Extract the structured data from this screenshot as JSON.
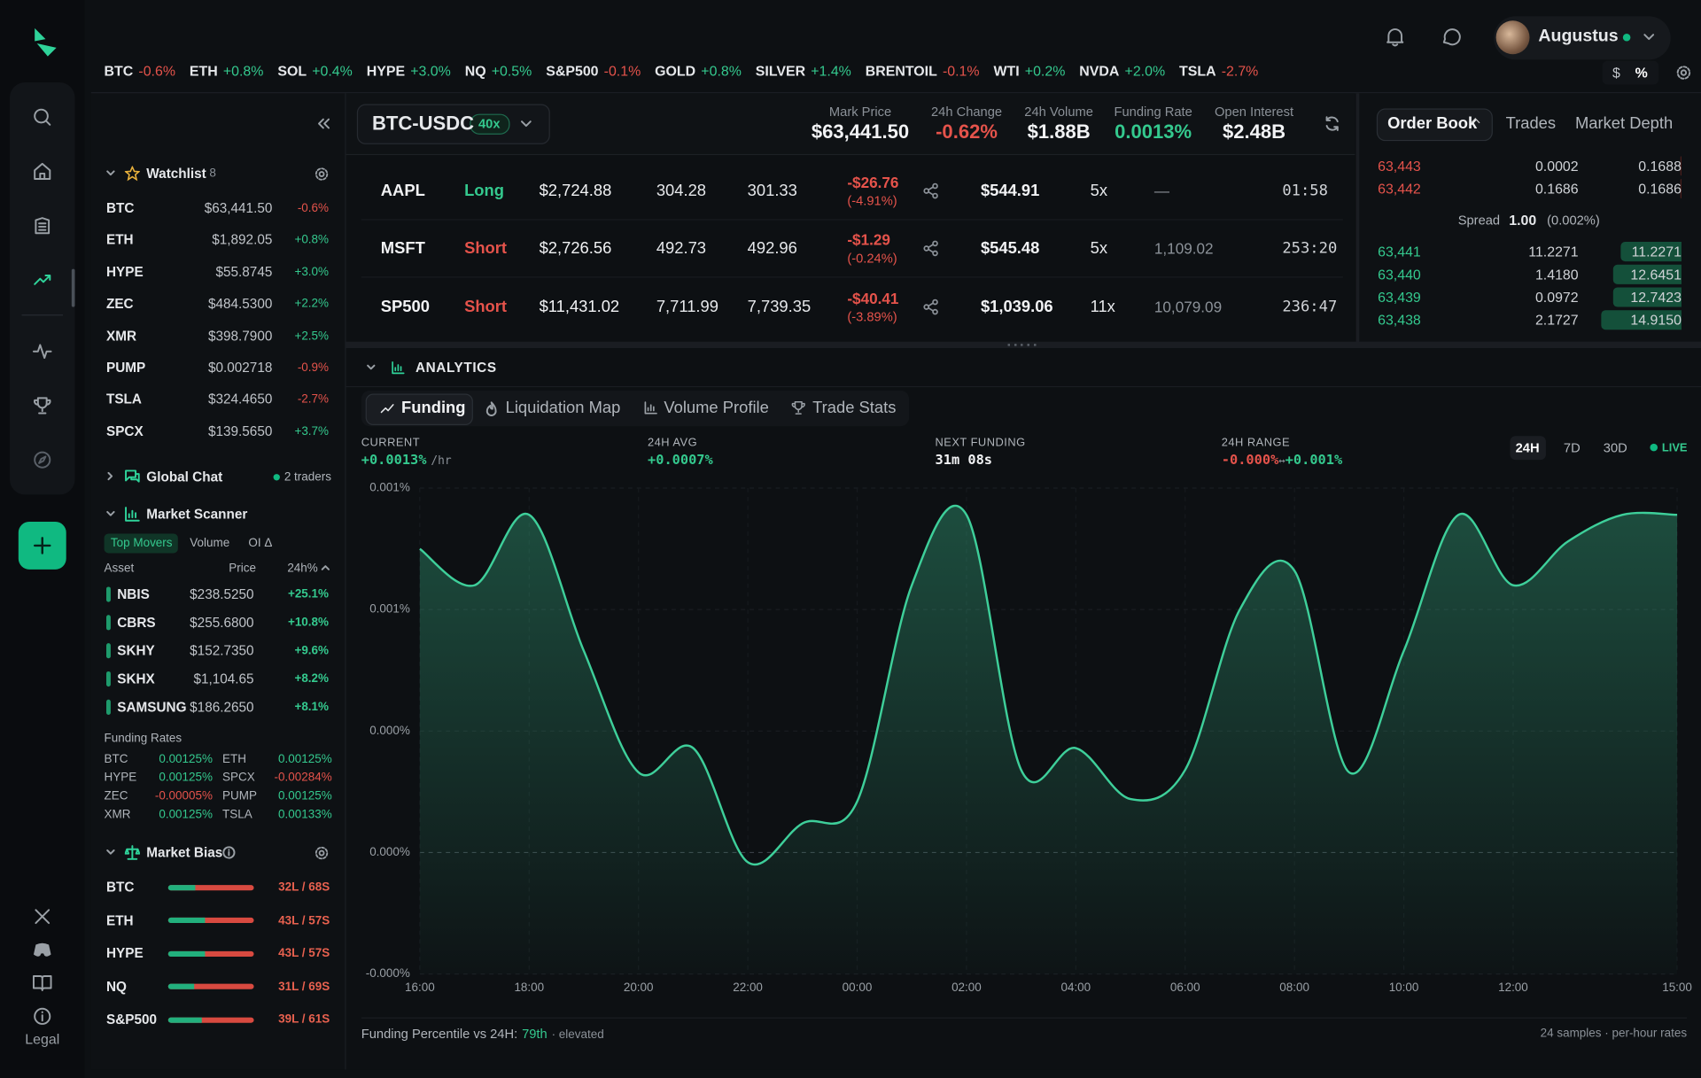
{
  "nav": {
    "legal": "Legal"
  },
  "user": {
    "name": "Augustus"
  },
  "tickers": [
    {
      "sym": "BTC",
      "chg": "-0.6%"
    },
    {
      "sym": "ETH",
      "chg": "+0.8%"
    },
    {
      "sym": "SOL",
      "chg": "+0.4%"
    },
    {
      "sym": "HYPE",
      "chg": "+3.0%"
    },
    {
      "sym": "NQ",
      "chg": "+0.5%"
    },
    {
      "sym": "S&P500",
      "chg": "-0.1%"
    },
    {
      "sym": "GOLD",
      "chg": "+0.8%"
    },
    {
      "sym": "SILVER",
      "chg": "+1.4%"
    },
    {
      "sym": "BRENTOIL",
      "chg": "-0.1%"
    },
    {
      "sym": "WTI",
      "chg": "+0.2%"
    },
    {
      "sym": "NVDA",
      "chg": "+2.0%"
    },
    {
      "sym": "TSLA",
      "chg": "-2.7%"
    }
  ],
  "unit_toggle": [
    "$",
    "%"
  ],
  "market": {
    "pair": "BTC-USDC",
    "leverage": "40x",
    "stats": [
      {
        "label": "Mark Price",
        "value": "$63,441.50"
      },
      {
        "label": "24h Change",
        "value": "-0.62%"
      },
      {
        "label": "24h Volume",
        "value": "$1.88B"
      },
      {
        "label": "Funding Rate",
        "value": "0.0013%"
      },
      {
        "label": "Open Interest",
        "value": "$2.48B"
      }
    ]
  },
  "positions": {
    "rows": [
      {
        "asset": "AAPL",
        "side": "Long",
        "size": "$2,724.88",
        "entry": "304.28",
        "mark": "301.33",
        "pnl": "-$26.76",
        "pnl_pct": "(-4.91%)",
        "margin": "$544.91",
        "lev": "5x",
        "liq": "—",
        "time": "01:58"
      },
      {
        "asset": "MSFT",
        "side": "Short",
        "size": "$2,726.56",
        "entry": "492.73",
        "mark": "492.96",
        "pnl": "-$1.29",
        "pnl_pct": "(-0.24%)",
        "margin": "$545.48",
        "lev": "5x",
        "liq": "1,109.02",
        "time": "253:20"
      },
      {
        "asset": "SP500",
        "side": "Short",
        "size": "$11,431.02",
        "entry": "7,711.99",
        "mark": "7,739.35",
        "pnl": "-$40.41",
        "pnl_pct": "(-3.89%)",
        "margin": "$1,039.06",
        "lev": "11x",
        "liq": "10,079.09",
        "time": "236:47"
      }
    ]
  },
  "order_book": {
    "tabs": [
      "Order Book",
      "Trades",
      "Market Depth"
    ],
    "asks": [
      {
        "price": "63,443",
        "size": "0.0002",
        "total": "0.1688"
      },
      {
        "price": "63,442",
        "size": "0.1686",
        "total": "0.1686"
      }
    ],
    "spread": {
      "label": "Spread",
      "value": "1.00",
      "pct": "(0.002%)"
    },
    "bids": [
      {
        "price": "63,441",
        "size": "11.2271",
        "total": "11.2271"
      },
      {
        "price": "63,440",
        "size": "1.4180",
        "total": "12.6451"
      },
      {
        "price": "63,439",
        "size": "0.0972",
        "total": "12.7423"
      },
      {
        "price": "63,438",
        "size": "2.1727",
        "total": "14.9150"
      }
    ]
  },
  "watchlist": {
    "title": "Watchlist",
    "count": "8",
    "items": [
      {
        "sym": "BTC",
        "price": "$63,441.50",
        "chg": "-0.6%"
      },
      {
        "sym": "ETH",
        "price": "$1,892.05",
        "chg": "+0.8%"
      },
      {
        "sym": "HYPE",
        "price": "$55.8745",
        "chg": "+3.0%"
      },
      {
        "sym": "ZEC",
        "price": "$484.5300",
        "chg": "+2.2%"
      },
      {
        "sym": "XMR",
        "price": "$398.7900",
        "chg": "+2.5%"
      },
      {
        "sym": "PUMP",
        "price": "$0.002718",
        "chg": "-0.9%"
      },
      {
        "sym": "TSLA",
        "price": "$324.4650",
        "chg": "-2.7%"
      },
      {
        "sym": "SPCX",
        "price": "$139.5650",
        "chg": "+3.7%"
      }
    ]
  },
  "global_chat": {
    "title": "Global Chat",
    "status": "2 traders"
  },
  "scanner": {
    "title": "Market Scanner",
    "tabs": [
      "Top Movers",
      "Volume",
      "OI Δ"
    ],
    "columns": [
      "Asset",
      "Price",
      "24h%"
    ],
    "rows": [
      {
        "sym": "NBIS",
        "price": "$238.5250",
        "chg": "+25.1%"
      },
      {
        "sym": "CBRS",
        "price": "$255.6800",
        "chg": "+10.8%"
      },
      {
        "sym": "SKHY",
        "price": "$152.7350",
        "chg": "+9.6%"
      },
      {
        "sym": "SKHX",
        "price": "$1,104.65",
        "chg": "+8.2%"
      },
      {
        "sym": "SAMSUNG",
        "price": "$186.2650",
        "chg": "+8.1%"
      }
    ]
  },
  "funding_rates": {
    "title": "Funding Rates",
    "items": [
      {
        "asset": "BTC",
        "rate": "0.00125%"
      },
      {
        "asset": "ETH",
        "rate": "0.00125%"
      },
      {
        "asset": "HYPE",
        "rate": "0.00125%"
      },
      {
        "asset": "SPCX",
        "rate": "-0.00284%"
      },
      {
        "asset": "ZEC",
        "rate": "-0.00005%"
      },
      {
        "asset": "PUMP",
        "rate": "0.00125%"
      },
      {
        "asset": "XMR",
        "rate": "0.00125%"
      },
      {
        "asset": "TSLA",
        "rate": "0.00133%"
      }
    ]
  },
  "market_bias": {
    "title": "Market Bias",
    "items": [
      {
        "asset": "BTC",
        "long": 32,
        "label": "32L / 68S"
      },
      {
        "asset": "ETH",
        "long": 43,
        "label": "43L / 57S"
      },
      {
        "asset": "HYPE",
        "long": 43,
        "label": "43L / 57S"
      },
      {
        "asset": "NQ",
        "long": 31,
        "label": "31L / 69S"
      },
      {
        "asset": "S&P500",
        "long": 39,
        "label": "39L / 61S"
      }
    ]
  },
  "analytics": {
    "title": "ANALYTICS",
    "tabs": [
      "Funding",
      "Liquidation Map",
      "Volume Profile",
      "Trade Stats"
    ],
    "current": {
      "label": "CURRENT",
      "value": "+0.0013%",
      "unit": "/hr"
    },
    "avg": {
      "label": "24H AVG",
      "value": "+0.0007%"
    },
    "next": {
      "label": "NEXT FUNDING",
      "value": "31m 08s"
    },
    "range": {
      "label": "24H RANGE",
      "low": "-0.000%",
      "sep": "↔",
      "high": "+0.001%"
    },
    "ranges": [
      "24H",
      "7D",
      "30D"
    ],
    "live": "LIVE",
    "footer": {
      "label": "Funding Percentile vs 24H:",
      "value": "79th",
      "note": "· elevated",
      "right": "24 samples · per-hour rates"
    }
  },
  "chart_data": {
    "type": "line",
    "categories": [
      "16:00",
      null,
      "18:00",
      null,
      "20:00",
      null,
      "22:00",
      null,
      "00:00",
      null,
      "02:00",
      null,
      "04:00",
      null,
      "06:00",
      null,
      "08:00",
      null,
      "10:00",
      null,
      "12:00",
      null,
      null,
      "15:00"
    ],
    "values": [
      0.00125,
      0.0011,
      0.00139,
      0.00083,
      0.00033,
      0.00043,
      -4e-05,
      0.00012,
      0.00021,
      0.0011,
      0.00139,
      0.00034,
      0.00043,
      0.00022,
      0.00034,
      0.001,
      0.00116,
      0.00033,
      0.00083,
      0.00139,
      0.0011,
      0.00128,
      0.00139,
      0.00139
    ],
    "color": "#3ecf9a",
    "ylim": [
      -0.0005,
      0.0015
    ],
    "yticks": [
      {
        "value": 0.0015,
        "label": "0.001%"
      },
      {
        "value": 0.001,
        "label": "0.001%"
      },
      {
        "value": 0.0005,
        "label": "0.000%"
      },
      {
        "value": 0,
        "label": "0.000%"
      },
      {
        "value": -0.0005,
        "label": "-0.000%"
      }
    ],
    "grid": true
  }
}
